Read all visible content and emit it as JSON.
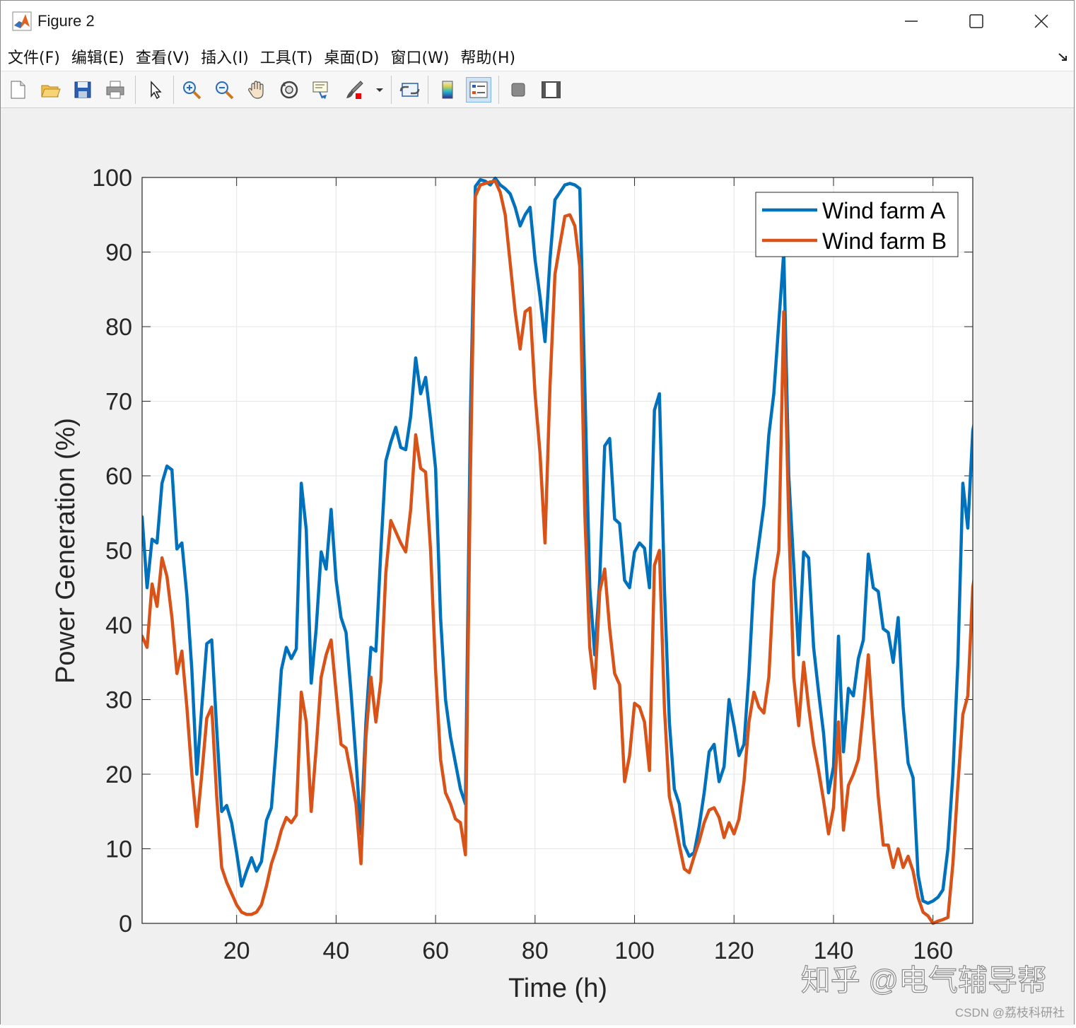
{
  "window": {
    "title": "Figure 2",
    "minimize_glyph": "—",
    "maximize_glyph": "☐",
    "close_glyph": "✕"
  },
  "menu": [
    {
      "label": "文件(F)"
    },
    {
      "label": "编辑(E)"
    },
    {
      "label": "查看(V)"
    },
    {
      "label": "插入(I)"
    },
    {
      "label": "工具(T)"
    },
    {
      "label": "桌面(D)"
    },
    {
      "label": "窗口(W)"
    },
    {
      "label": "帮助(H)"
    }
  ],
  "toolbar": {
    "buttons": [
      {
        "name": "new-figure-icon"
      },
      {
        "name": "open-file-icon"
      },
      {
        "name": "save-icon"
      },
      {
        "name": "print-icon"
      },
      {
        "name": "pointer-icon"
      },
      {
        "name": "zoom-in-icon"
      },
      {
        "name": "zoom-out-icon"
      },
      {
        "name": "pan-hand-icon"
      },
      {
        "name": "rotate-3d-icon"
      },
      {
        "name": "data-cursor-icon"
      },
      {
        "name": "brush-icon"
      },
      {
        "name": "link-plot-icon"
      },
      {
        "name": "colorbar-icon"
      },
      {
        "name": "legend-icon"
      },
      {
        "name": "hide-plot-tools-icon"
      },
      {
        "name": "show-plot-tools-icon"
      }
    ]
  },
  "colors": {
    "series_a": "#0072BD",
    "series_b": "#D95319",
    "grid": "#e6e6e6",
    "axes_bg": "#ffffff"
  },
  "watermark": {
    "main": "知乎 @电气辅导帮",
    "sub": "CSDN @荔枝科研社"
  },
  "chart_data": {
    "type": "line",
    "title": "",
    "xlabel": "Time (h)",
    "ylabel": "Power Generation (%)",
    "xlim": [
      1,
      168
    ],
    "ylim": [
      0,
      100
    ],
    "xticks": [
      20,
      40,
      60,
      80,
      100,
      120,
      140,
      160
    ],
    "yticks": [
      0,
      10,
      20,
      30,
      40,
      50,
      60,
      70,
      80,
      90,
      100
    ],
    "grid": true,
    "legend_position": "top-right",
    "series": [
      {
        "name": "Wind farm A",
        "values": [
          54.5,
          45.0,
          51.5,
          51.0,
          59.0,
          61.3,
          60.8,
          50.2,
          51.0,
          44.0,
          34.0,
          20.0,
          29.0,
          37.5,
          38.0,
          26.0,
          15.0,
          15.8,
          13.5,
          9.5,
          5.0,
          7.0,
          8.8,
          7.0,
          8.3,
          13.8,
          15.5,
          24.0,
          34.0,
          37.0,
          35.5,
          36.8,
          59.0,
          52.8,
          32.2,
          39.5,
          49.8,
          47.5,
          55.5,
          46.0,
          41.0,
          39.0,
          31.0,
          22.0,
          12.0,
          27.0,
          37.0,
          36.5,
          50.0,
          62.0,
          64.5,
          66.5,
          63.8,
          63.5,
          68.0,
          75.8,
          71.0,
          73.2,
          67.5,
          61.0,
          41.0,
          30.0,
          25.0,
          21.5,
          18.0,
          16.0,
          68.0,
          98.8,
          99.7,
          99.5,
          99.0,
          99.9,
          99.0,
          98.5,
          97.8,
          96.0,
          93.5,
          95.0,
          96.0,
          89.0,
          84.0,
          78.0,
          89.0,
          97.0,
          98.0,
          99.0,
          99.2,
          99.0,
          98.5,
          72.0,
          45.0,
          36.0,
          46.0,
          64.0,
          65.0,
          54.2,
          53.6,
          46.0,
          45.0,
          49.8,
          51.0,
          50.3,
          45.0,
          68.8,
          71.0,
          45.0,
          27.0,
          18.0,
          16.0,
          10.5,
          9.0,
          9.5,
          13.0,
          17.5,
          23.0,
          24.0,
          19.0,
          21.0,
          30.0,
          26.5,
          22.5,
          24.0,
          33.5,
          46.0,
          51.0,
          56.0,
          65.5,
          71.0,
          80.5,
          90.0,
          60.0,
          48.0,
          36.0,
          49.8,
          49.0,
          37.0,
          31.0,
          25.5,
          17.5,
          21.0,
          38.5,
          23.0,
          31.5,
          30.5,
          35.5,
          38.0,
          49.5,
          45.0,
          44.5,
          39.5,
          39.0,
          35.0,
          41.0,
          29.0,
          21.5,
          19.5,
          6.5,
          3.0,
          2.7,
          3.0,
          3.5,
          4.5,
          10.0,
          20.0,
          35.0,
          59.0,
          53.0,
          66.0,
          69.8
        ],
        "color": "#0072BD"
      },
      {
        "name": "Wind farm B",
        "values": [
          38.5,
          37.0,
          45.5,
          42.5,
          49.0,
          46.5,
          41.0,
          33.5,
          36.5,
          29.0,
          20.0,
          13.0,
          20.0,
          27.5,
          29.0,
          17.0,
          7.5,
          5.5,
          4.0,
          2.5,
          1.5,
          1.2,
          1.2,
          1.5,
          2.5,
          5.0,
          8.0,
          10.0,
          12.5,
          14.2,
          13.5,
          14.5,
          31.0,
          27.0,
          15.0,
          23.5,
          33.0,
          36.0,
          38.0,
          31.0,
          24.0,
          23.5,
          20.0,
          16.0,
          8.0,
          25.0,
          33.0,
          27.0,
          32.5,
          47.0,
          54.0,
          52.5,
          51.0,
          49.8,
          55.5,
          65.5,
          61.0,
          60.5,
          50.0,
          34.0,
          22.0,
          17.5,
          16.0,
          14.0,
          13.5,
          9.2,
          60.0,
          97.5,
          99.0,
          99.2,
          99.4,
          99.5,
          98.0,
          95.0,
          88.5,
          82.0,
          77.0,
          82.0,
          82.5,
          71.0,
          63.0,
          51.0,
          72.0,
          87.0,
          91.0,
          94.8,
          95.0,
          93.5,
          88.0,
          55.0,
          37.0,
          31.5,
          44.5,
          47.5,
          39.5,
          33.5,
          32.0,
          19.0,
          22.5,
          29.5,
          29.0,
          27.0,
          20.5,
          48.0,
          50.0,
          29.0,
          17.0,
          14.0,
          10.5,
          7.3,
          6.8,
          9.0,
          11.0,
          13.5,
          15.2,
          15.5,
          14.2,
          11.5,
          13.5,
          12.0,
          14.0,
          19.0,
          27.0,
          31.0,
          29.0,
          28.2,
          33.0,
          46.0,
          50.0,
          82.0,
          54.0,
          33.0,
          26.5,
          35.0,
          29.0,
          24.0,
          20.5,
          16.5,
          12.0,
          15.5,
          27.0,
          12.5,
          18.5,
          20.0,
          22.0,
          28.5,
          36.0,
          26.0,
          17.0,
          10.5,
          10.5,
          7.5,
          10.0,
          7.5,
          9.0,
          7.0,
          3.5,
          1.5,
          1.0,
          0.0,
          0.3,
          0.5,
          0.8,
          8.0,
          18.5,
          28.0,
          30.5,
          45.0,
          49.5
        ],
        "color": "#D95319"
      }
    ]
  }
}
